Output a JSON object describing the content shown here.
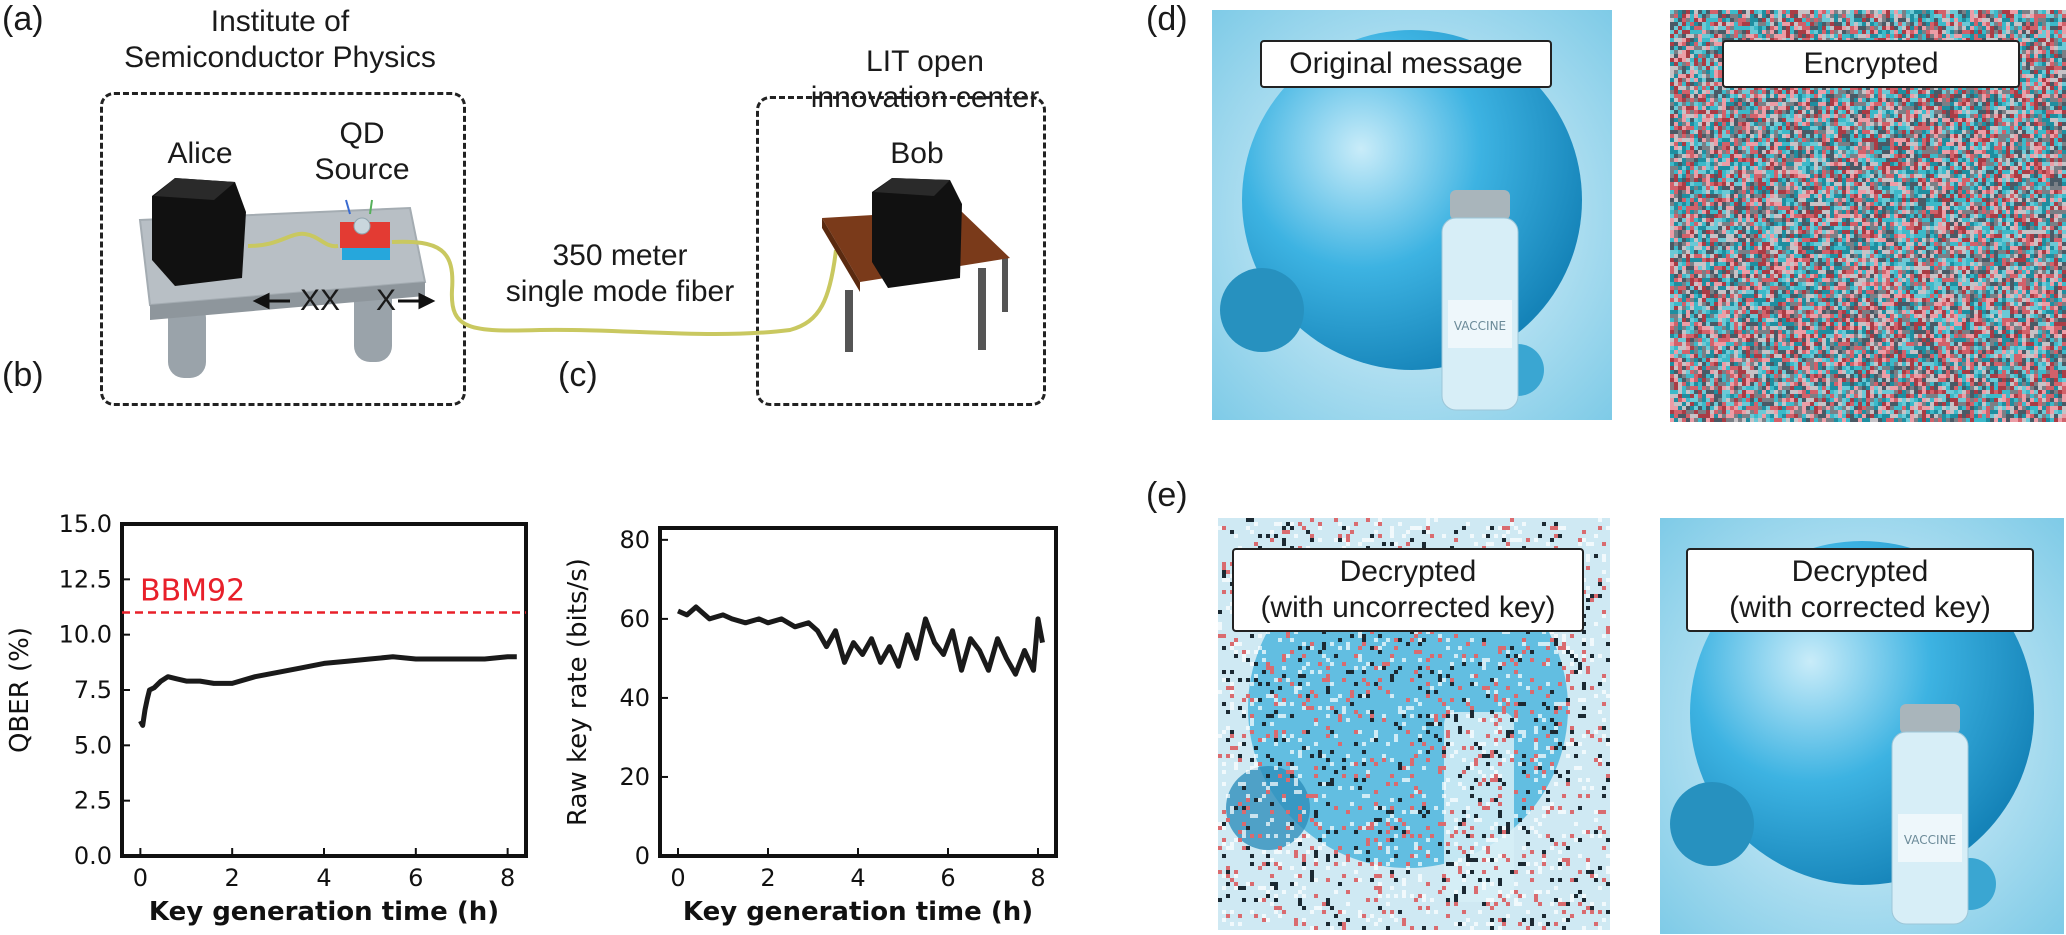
{
  "panels": {
    "a": "(a)",
    "b": "(b)",
    "c": "(c)",
    "d": "(d)",
    "e": "(e)"
  },
  "setup": {
    "left_site_line1": "Institute of",
    "left_site_line2": "Semiconductor Physics",
    "right_site_line1": "LIT open",
    "right_site_line2": "innovation center",
    "alice": "Alice",
    "qd_line1": "QD",
    "qd_line2": "Source",
    "bob": "Bob",
    "fiber_line1": "350 meter",
    "fiber_line2": "single mode fiber",
    "xx": "XX",
    "x": "X"
  },
  "images": {
    "original": "Original message",
    "encrypted": "Encrypted",
    "decrypted_uncorrected_line1": "Decrypted",
    "decrypted_uncorrected_line2": "(with uncorrected key)",
    "decrypted_corrected_line1": "Decrypted",
    "decrypted_corrected_line2": "(with corrected key)",
    "vial_label": "VACCINE"
  },
  "colors": {
    "threshold": "#e8202a",
    "curve": "#1a1a1a",
    "globe": "#2aa6d8",
    "table": "#b5bcc2"
  },
  "chart_data": [
    {
      "type": "line",
      "panel": "b",
      "xlabel": "Key generation time (h)",
      "ylabel": "QBER (%)",
      "xlim": [
        -0.4,
        8.4
      ],
      "ylim": [
        0,
        15
      ],
      "xticks": [
        0,
        2,
        4,
        6,
        8
      ],
      "xtick_labels": [
        "0",
        "2",
        "4",
        "6",
        "8"
      ],
      "yticks": [
        0,
        2.5,
        5,
        7.5,
        10,
        12.5,
        15
      ],
      "ytick_labels": [
        "0.0",
        "2.5",
        "5.0",
        "7.5",
        "10.0",
        "12.5",
        "15.0"
      ],
      "grid": false,
      "threshold": {
        "label": "BBM92",
        "value": 11
      },
      "series": [
        {
          "x": [
            0,
            0.05,
            0.1,
            0.15,
            0.2,
            0.3,
            0.45,
            0.6,
            0.8,
            1.0,
            1.3,
            1.6,
            2.0,
            2.5,
            3.0,
            3.5,
            4.0,
            4.5,
            5.0,
            5.5,
            6.0,
            6.5,
            7.0,
            7.5,
            8.0,
            8.2
          ],
          "y": [
            6.1,
            5.9,
            6.6,
            7.1,
            7.5,
            7.6,
            7.9,
            8.1,
            8.0,
            7.9,
            7.9,
            7.8,
            7.8,
            8.1,
            8.3,
            8.5,
            8.7,
            8.8,
            8.9,
            9.0,
            8.9,
            8.9,
            8.9,
            8.9,
            9.0,
            9.0
          ]
        }
      ]
    },
    {
      "type": "line",
      "panel": "c",
      "xlabel": "Key generation time (h)",
      "ylabel": "Raw key rate (bits/s)",
      "xlim": [
        -0.4,
        8.4
      ],
      "ylim": [
        0,
        83
      ],
      "xticks": [
        0,
        2,
        4,
        6,
        8
      ],
      "xtick_labels": [
        "0",
        "2",
        "4",
        "6",
        "8"
      ],
      "yticks": [
        0,
        20,
        40,
        60,
        80
      ],
      "ytick_labels": [
        "0",
        "20",
        "40",
        "60",
        "80"
      ],
      "grid": false,
      "series": [
        {
          "x": [
            0,
            0.2,
            0.4,
            0.5,
            0.7,
            1.0,
            1.2,
            1.5,
            1.8,
            2.0,
            2.3,
            2.6,
            2.9,
            3.1,
            3.3,
            3.5,
            3.7,
            3.9,
            4.1,
            4.3,
            4.5,
            4.7,
            4.9,
            5.1,
            5.3,
            5.5,
            5.7,
            5.9,
            6.1,
            6.3,
            6.5,
            6.7,
            6.9,
            7.1,
            7.3,
            7.5,
            7.7,
            7.9,
            8.0,
            8.1
          ],
          "y": [
            62,
            61,
            63,
            62,
            60,
            61,
            60,
            59,
            60,
            59,
            60,
            58,
            59,
            57,
            53,
            57,
            49,
            54,
            51,
            55,
            49,
            53,
            48,
            56,
            50,
            60,
            54,
            51,
            57,
            47,
            55,
            52,
            47,
            55,
            50,
            46,
            52,
            47,
            60,
            54
          ]
        }
      ]
    }
  ]
}
